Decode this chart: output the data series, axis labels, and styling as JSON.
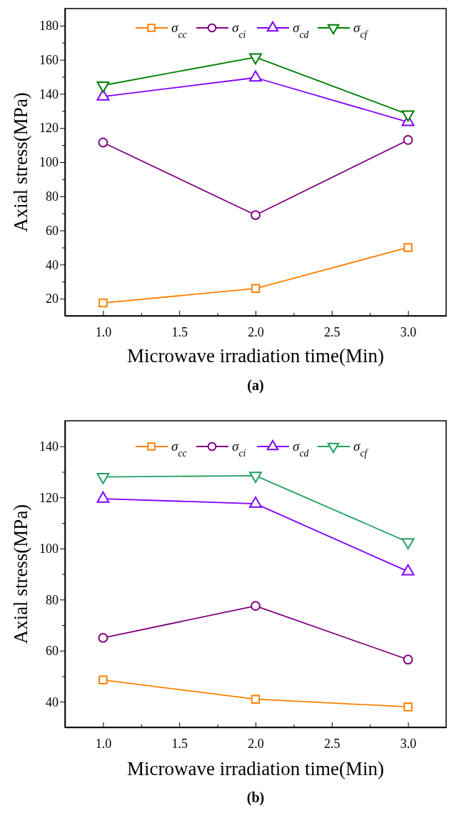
{
  "chart_data": [
    {
      "type": "line",
      "title": "(a)",
      "xlabel": "Microwave irradiation time(Min)",
      "ylabel": "Axial stress(MPa)",
      "x": [
        1,
        2,
        3
      ],
      "xlim": [
        0.75,
        3.25
      ],
      "xticks": [
        {
          "value": 1,
          "label": "1.0"
        },
        {
          "value": 1.25,
          "label": null
        },
        {
          "value": 1.5,
          "label": "1.5"
        },
        {
          "value": 1.75,
          "label": null
        },
        {
          "value": 2,
          "label": "2.0"
        },
        {
          "value": 2.25,
          "label": null
        },
        {
          "value": 2.5,
          "label": "2.5"
        },
        {
          "value": 2.75,
          "label": null
        },
        {
          "value": 3,
          "label": "3.0"
        }
      ],
      "ylim": [
        10,
        190
      ],
      "yticks": [
        20,
        {
          "value": 30,
          "label": null
        },
        40,
        {
          "value": 50,
          "label": null
        },
        60,
        {
          "value": 70,
          "label": null
        },
        80,
        {
          "value": 90,
          "label": null
        },
        100,
        {
          "value": 110,
          "label": null
        },
        120,
        {
          "value": 130,
          "label": null
        },
        140,
        {
          "value": 150,
          "label": null
        },
        160,
        {
          "value": 170,
          "label": null
        },
        180
      ],
      "legend": "top",
      "grid": false,
      "line_style": "solid",
      "series": [
        {
          "name": "σ$_{cc}$",
          "color": "#ff8000",
          "marker": "square",
          "values": [
            17.5,
            26,
            50
          ]
        },
        {
          "name": "σ$_{ci}$",
          "color": "#800080",
          "marker": "circle",
          "values": [
            111.5,
            69,
            113
          ]
        },
        {
          "name": "σ$_{cd}$",
          "color": "#8000ff",
          "marker": "triangle",
          "values": [
            138.5,
            149.5,
            123.5
          ]
        },
        {
          "name": "σ$_{cf}$",
          "color": "#008000",
          "marker": "triangle-down",
          "values": [
            145,
            161.5,
            128
          ]
        }
      ]
    },
    {
      "type": "line",
      "title": "(b)",
      "xlabel": "Microwave irradiation time(Min)",
      "ylabel": "Axial stress(MPa)",
      "x": [
        1,
        2,
        3
      ],
      "xlim": [
        0.75,
        3.25
      ],
      "xticks": [
        {
          "value": 1,
          "label": "1.0"
        },
        {
          "value": 1.25,
          "label": null
        },
        {
          "value": 1.5,
          "label": "1.5"
        },
        {
          "value": 1.75,
          "label": null
        },
        {
          "value": 2,
          "label": "2.0"
        },
        {
          "value": 2.25,
          "label": null
        },
        {
          "value": 2.5,
          "label": "2.5"
        },
        {
          "value": 2.75,
          "label": null
        },
        {
          "value": 3,
          "label": "3.0"
        }
      ],
      "ylim": [
        30,
        150
      ],
      "yticks": [
        40,
        {
          "value": 50,
          "label": null
        },
        60,
        {
          "value": 70,
          "label": null
        },
        80,
        {
          "value": 90,
          "label": null
        },
        100,
        {
          "value": 110,
          "label": null
        },
        120,
        {
          "value": 130,
          "label": null
        },
        140
      ],
      "legend": "top",
      "grid": false,
      "line_style": "solid",
      "series": [
        {
          "name": "σ$_{cc}$",
          "color": "#ff8000",
          "marker": "square",
          "values": [
            48.5,
            41,
            38
          ]
        },
        {
          "name": "σ$_{ci}$",
          "color": "#800080",
          "marker": "circle",
          "values": [
            65,
            77.5,
            56.5
          ]
        },
        {
          "name": "σ$_{cd}$",
          "color": "#8000ff",
          "marker": "triangle",
          "values": [
            119.5,
            117.5,
            91
          ]
        },
        {
          "name": "σ$_{cf}$",
          "color": "#22a060",
          "marker": "triangle-down",
          "values": [
            128,
            128.5,
            102.5
          ]
        }
      ]
    }
  ]
}
